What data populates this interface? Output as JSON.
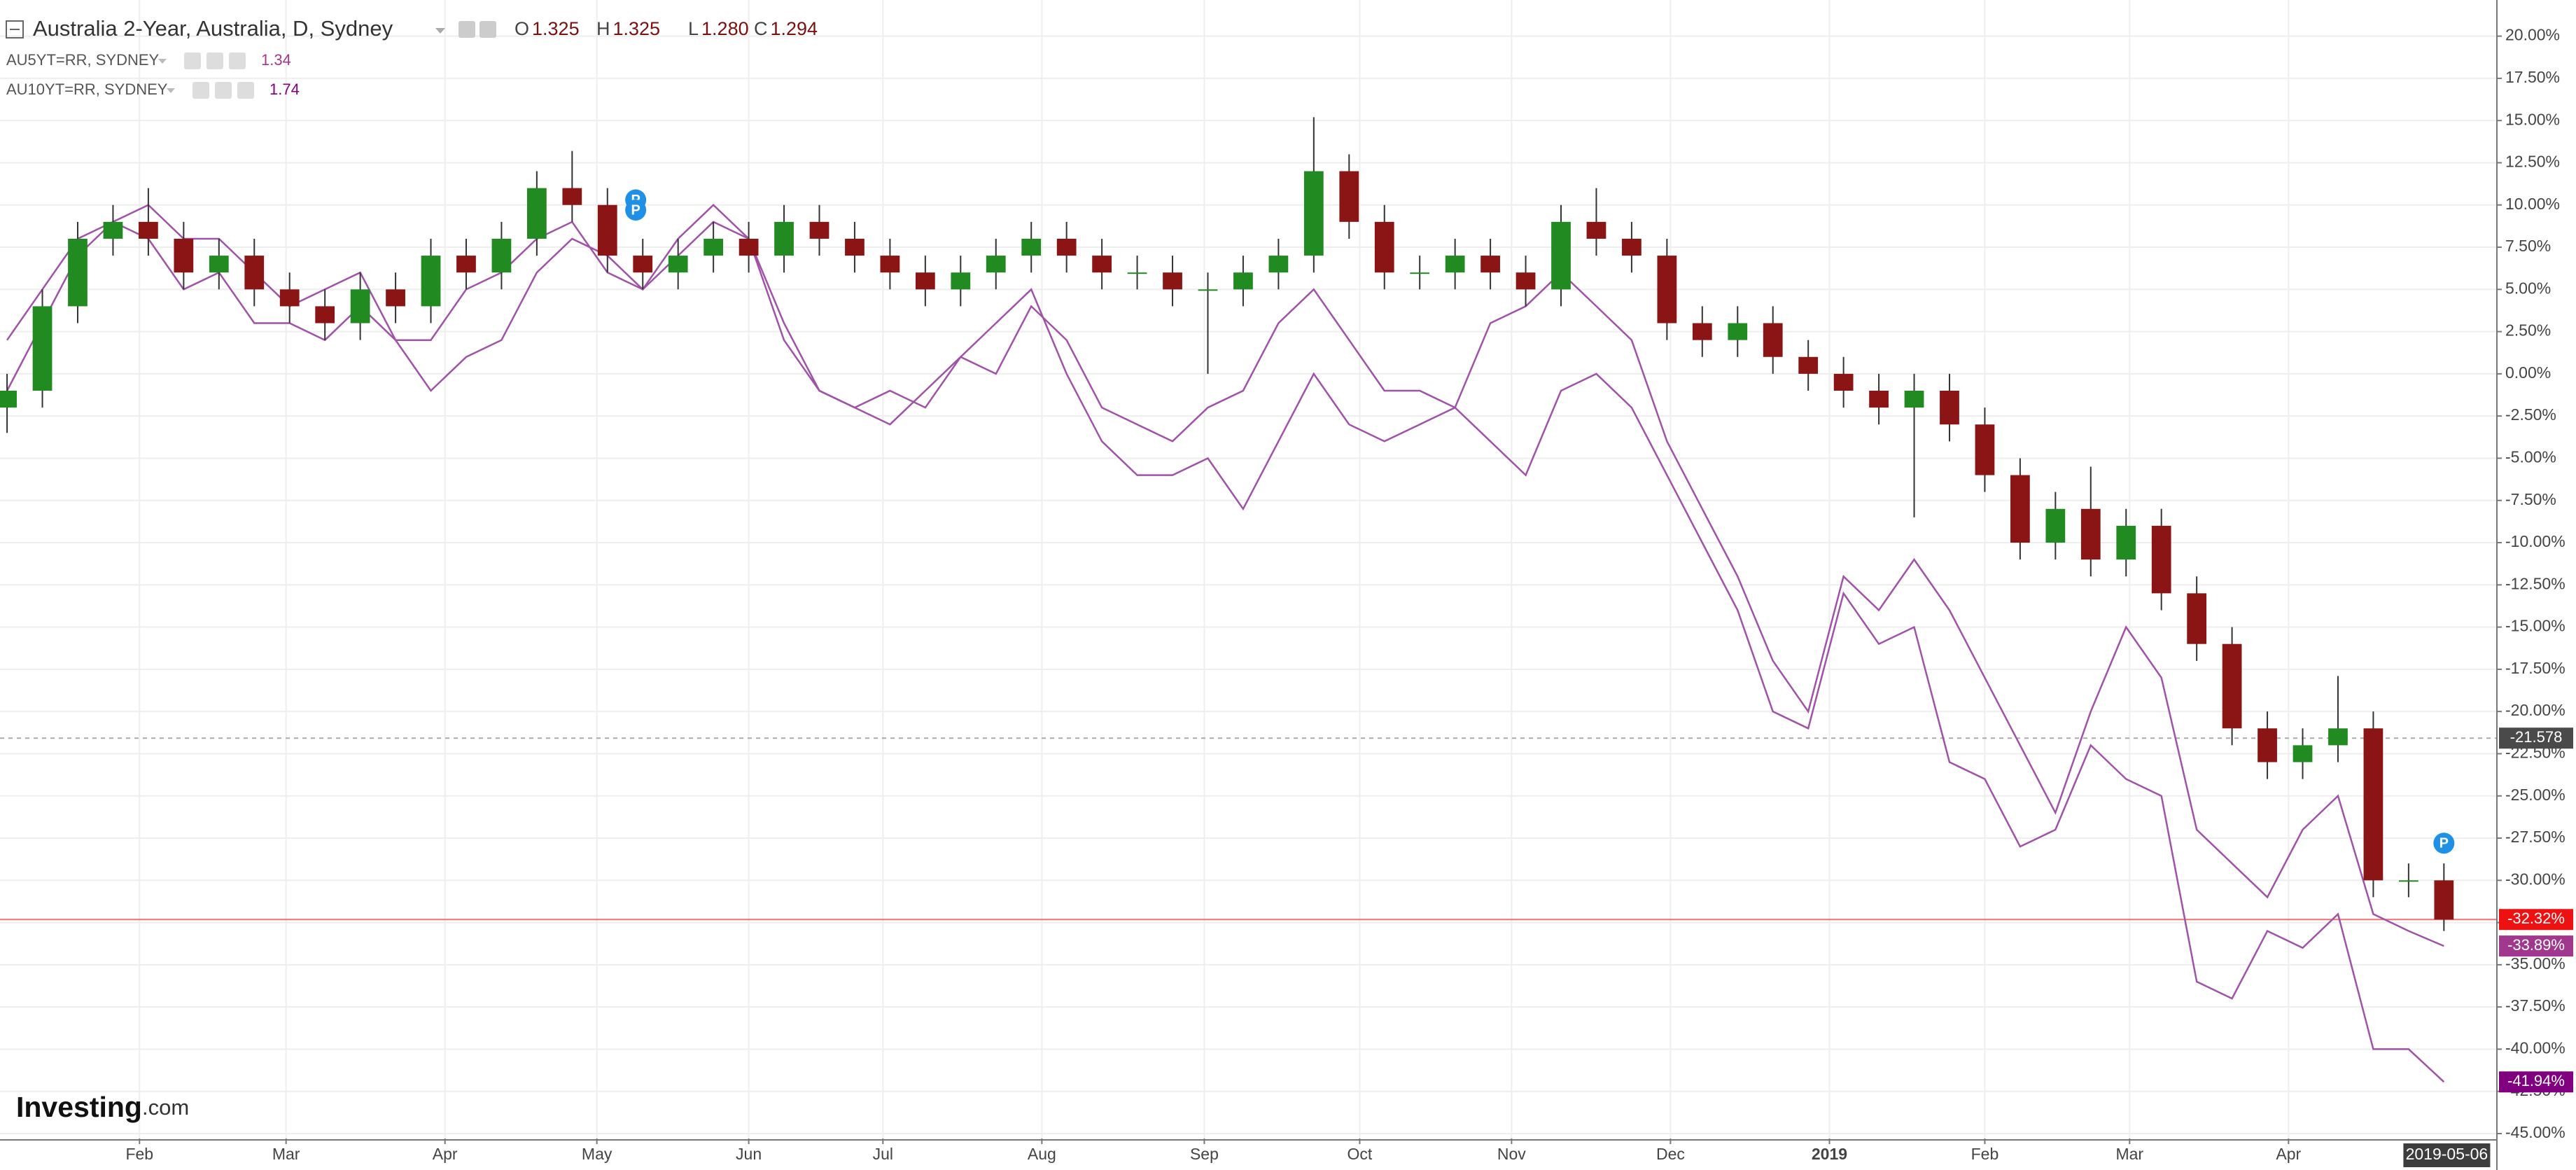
{
  "header": {
    "title": "Australia 2-Year, Australia, D, Sydney",
    "ohlc": [
      {
        "key": "O",
        "value": "1.325"
      },
      {
        "key": "H",
        "value": "1.325"
      },
      {
        "key": "L",
        "value": "1.280"
      },
      {
        "key": "C",
        "value": "1.294"
      }
    ]
  },
  "branding": {
    "name": "Investing",
    "suffix": ".com"
  },
  "chart_data": {
    "type": "candlestick",
    "x": [
      0,
      1,
      2,
      3,
      4,
      5,
      6,
      7,
      8,
      9,
      10,
      11,
      12,
      13,
      14,
      15,
      16,
      17,
      18,
      19,
      20,
      21,
      22,
      23,
      24,
      25,
      26,
      27,
      28,
      29,
      30,
      31,
      32,
      33,
      34,
      35,
      36,
      37,
      38,
      39,
      40,
      41,
      42,
      43,
      44,
      45,
      46,
      47,
      48,
      49,
      50,
      51,
      52,
      53,
      54,
      55,
      56,
      57,
      58,
      59,
      60,
      61,
      62,
      63,
      64,
      65,
      66,
      67,
      68,
      69
    ],
    "open": [
      -2,
      -1,
      4,
      8,
      9,
      8,
      6,
      7,
      5,
      4,
      3,
      5,
      4,
      7,
      6,
      8,
      11,
      10,
      7,
      6,
      7,
      8,
      7,
      9,
      8,
      7,
      6,
      5,
      6,
      7,
      8,
      7,
      6,
      6,
      5,
      5,
      6,
      7,
      12,
      9,
      6,
      6,
      7,
      6,
      5,
      9,
      8,
      7,
      3,
      2,
      3,
      1,
      0,
      -1,
      -2,
      -1,
      -3,
      -6,
      -10,
      -8,
      -11,
      -9,
      -13,
      -16,
      -21,
      -23,
      -22,
      -21,
      -30,
      -30
    ],
    "high": [
      0,
      5,
      9,
      10,
      11,
      9,
      8,
      8,
      6,
      5,
      6,
      6,
      8,
      8,
      9,
      12,
      13.2,
      11,
      8,
      8,
      9,
      9,
      10,
      10,
      9,
      8,
      7,
      7,
      8,
      9,
      9,
      8,
      7,
      7,
      6,
      7,
      8,
      15.2,
      13,
      10,
      7,
      8,
      8,
      7,
      10,
      11,
      9,
      8,
      4,
      4,
      4,
      2,
      1,
      0,
      0,
      0,
      -2,
      -5,
      -7,
      -5.5,
      -8,
      -8,
      -12,
      -15,
      -20,
      -21,
      -17.9,
      -20,
      -29,
      -29
    ],
    "low": [
      -3.5,
      -2,
      3,
      7,
      7,
      5,
      5,
      4,
      3,
      2,
      2,
      3,
      3,
      5,
      5,
      7,
      9,
      6,
      5,
      5,
      6,
      6,
      6,
      7,
      6,
      5,
      4,
      4,
      5,
      6,
      6,
      5,
      5,
      4,
      0,
      4,
      5,
      6,
      8,
      5,
      5,
      5,
      5,
      4,
      4,
      7,
      6,
      2,
      1,
      1,
      0,
      -1,
      -2,
      -3,
      -8.5,
      -4,
      -7,
      -11,
      -11,
      -12,
      -12,
      -14,
      -17,
      -22,
      -24,
      -24,
      -23,
      -31,
      -31,
      -33
    ],
    "close": [
      -1,
      4,
      8,
      9,
      8,
      6,
      7,
      5,
      4,
      3,
      5,
      4,
      7,
      6,
      8,
      11,
      10,
      7,
      6,
      7,
      8,
      7,
      9,
      8,
      7,
      6,
      5,
      6,
      7,
      8,
      7,
      6,
      6,
      5,
      5,
      6,
      7,
      12,
      9,
      6,
      6,
      7,
      6,
      5,
      9,
      8,
      7,
      3,
      2,
      3,
      1,
      0,
      -1,
      -2,
      -1,
      -3,
      -6,
      -10,
      -8,
      -11,
      -9,
      -13,
      -16,
      -21,
      -23,
      -22,
      -21,
      -30,
      -30,
      -32.32
    ],
    "last_label": "-32.32%",
    "up_color": "#218a21",
    "down_color": "#8b1414",
    "last_line_color": "#f07070",
    "series": [
      {
        "name": "AU5YT=RR, SYDNEY",
        "last_price": "1.34",
        "color": "#a052a8",
        "label_color": "#a0388e",
        "last_label": "-33.89%",
        "values": [
          -1,
          3,
          7,
          9,
          8,
          5,
          6,
          3,
          3,
          2,
          4,
          2,
          2,
          5,
          6,
          8,
          9,
          6,
          5,
          7,
          9,
          8,
          2,
          -1,
          -2,
          -3,
          -1,
          1,
          0,
          4,
          2,
          -2,
          -3,
          -4,
          -2,
          -1,
          3,
          5,
          2,
          -1,
          -1,
          -2,
          3,
          4,
          6,
          4,
          2,
          -4,
          -8,
          -12,
          -17,
          -20,
          -12,
          -14,
          -11,
          -14,
          -18,
          -22,
          -26,
          -20,
          -15,
          -18,
          -27,
          -29,
          -31,
          -27,
          -25,
          -32,
          -33,
          -33.89
        ]
      },
      {
        "name": "AU10YT=RR, SYDNEY",
        "last_price": "1.74",
        "color": "#a052a8",
        "label_color": "#800080",
        "last_label": "-41.94%",
        "values": [
          2,
          5,
          8,
          9,
          10,
          8,
          8,
          6,
          4,
          5,
          6,
          2,
          -1,
          1,
          2,
          6,
          8,
          7,
          5,
          8,
          10,
          8,
          3,
          -1,
          -2,
          -1,
          -2,
          1,
          3,
          5,
          0,
          -4,
          -6,
          -6,
          -5,
          -8,
          -4,
          0,
          -3,
          -4,
          -3,
          -2,
          -4,
          -6,
          -1,
          0,
          -2,
          -6,
          -10,
          -14,
          -20,
          -21,
          -13,
          -16,
          -15,
          -23,
          -24,
          -28,
          -27,
          -22,
          -24,
          -25,
          -36,
          -37,
          -33,
          -34,
          -32,
          -40,
          -40,
          -41.94
        ]
      }
    ],
    "reference_line": -21.578,
    "events": [
      {
        "x": 17.8,
        "y": 10.3,
        "label": "P"
      },
      {
        "x": 17.8,
        "y": 9.7,
        "label": "P"
      },
      {
        "x": 69,
        "y": -27.8,
        "label": "P"
      }
    ],
    "xlim": [
      -0.2,
      70.5
    ],
    "xticks": [
      {
        "value": 3.75,
        "label": "Feb"
      },
      {
        "value": 7.9,
        "label": "Mar"
      },
      {
        "value": 12.4,
        "label": "Apr"
      },
      {
        "value": 16.7,
        "label": "May"
      },
      {
        "value": 21.0,
        "label": "Jun"
      },
      {
        "value": 24.8,
        "label": "Jul"
      },
      {
        "value": 29.3,
        "label": "Aug"
      },
      {
        "value": 33.9,
        "label": "Sep"
      },
      {
        "value": 38.3,
        "label": "Oct"
      },
      {
        "value": 42.6,
        "label": "Nov"
      },
      {
        "value": 47.1,
        "label": "Dec"
      },
      {
        "value": 51.6,
        "label": "2019"
      },
      {
        "value": 56.0,
        "label": "Feb"
      },
      {
        "value": 60.1,
        "label": "Mar"
      },
      {
        "value": 64.6,
        "label": "Apr"
      }
    ],
    "current_xtick": {
      "value": 69.2,
      "label": "2019-05-06"
    },
    "ylim": [
      -45.29,
      22.14
    ],
    "yticks": [
      {
        "value": 20,
        "label": "20.00%"
      },
      {
        "value": 17.5,
        "label": "17.50%"
      },
      {
        "value": 15,
        "label": "15.00%"
      },
      {
        "value": 12.5,
        "label": "12.50%"
      },
      {
        "value": 10,
        "label": "10.00%"
      },
      {
        "value": 7.5,
        "label": "7.50%"
      },
      {
        "value": 5,
        "label": "5.00%"
      },
      {
        "value": 2.5,
        "label": "2.50%"
      },
      {
        "value": 0,
        "label": "0.00%"
      },
      {
        "value": -2.5,
        "label": "-2.50%"
      },
      {
        "value": -5,
        "label": "-5.00%"
      },
      {
        "value": -7.5,
        "label": "-7.50%"
      },
      {
        "value": -10,
        "label": "-10.00%"
      },
      {
        "value": -12.5,
        "label": "-12.50%"
      },
      {
        "value": -15,
        "label": "-15.00%"
      },
      {
        "value": -17.5,
        "label": "-17.50%"
      },
      {
        "value": -20,
        "label": "-20.00%"
      },
      {
        "value": -22.5,
        "label": "-22.50%"
      },
      {
        "value": -25,
        "label": "-25.00%"
      },
      {
        "value": -27.5,
        "label": "-27.50%"
      },
      {
        "value": -30,
        "label": "-30.00%"
      },
      {
        "value": -32.5,
        "label": "-32.50%"
      },
      {
        "value": -35,
        "label": "-35.00%"
      },
      {
        "value": -37.5,
        "label": "-37.50%"
      },
      {
        "value": -40,
        "label": "-40.00%"
      },
      {
        "value": -42.5,
        "label": "-42.50%"
      },
      {
        "value": -45,
        "label": "-45.00%"
      }
    ],
    "grid": true
  }
}
